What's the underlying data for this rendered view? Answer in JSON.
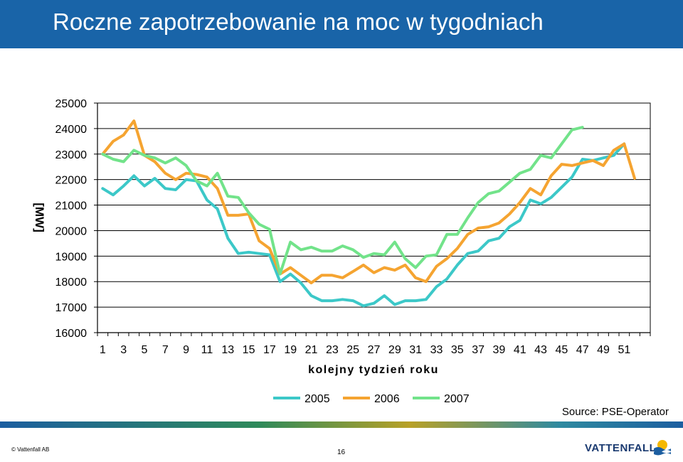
{
  "header": {
    "title": "Roczne zapotrzebowanie na moc w tygodniach"
  },
  "colors": {
    "header_bg": "#1964a8",
    "series_2005": "#3cc8c8",
    "series_2006": "#f5a431",
    "series_2007": "#72e38a",
    "logo": "#1a3a70"
  },
  "chart_data": {
    "type": "line",
    "title": "",
    "xlabel": "kolejny tydzień roku",
    "ylabel": "[MW]",
    "ylim": [
      16000,
      25000
    ],
    "yticks": [
      16000,
      17000,
      18000,
      19000,
      20000,
      21000,
      22000,
      23000,
      24000,
      25000
    ],
    "xlim": [
      1,
      53
    ],
    "xticks": [
      1,
      3,
      5,
      7,
      9,
      11,
      13,
      15,
      17,
      19,
      21,
      23,
      25,
      27,
      29,
      31,
      33,
      35,
      37,
      39,
      41,
      43,
      45,
      47,
      49,
      51
    ],
    "grid": "horizontal",
    "legend_position": "bottom",
    "series": [
      {
        "name": "2005",
        "color": "#3cc8c8",
        "x": [
          1,
          2,
          3,
          4,
          5,
          6,
          7,
          8,
          9,
          10,
          11,
          12,
          13,
          14,
          15,
          16,
          17,
          18,
          19,
          20,
          21,
          22,
          23,
          24,
          25,
          26,
          27,
          28,
          29,
          30,
          31,
          32,
          33,
          34,
          35,
          36,
          37,
          38,
          39,
          40,
          41,
          42,
          43,
          44,
          45,
          46,
          47,
          48,
          49,
          50,
          51
        ],
        "values": [
          21650,
          21400,
          21750,
          22150,
          21750,
          22050,
          21650,
          21600,
          22000,
          21950,
          21200,
          20850,
          19700,
          19100,
          19150,
          19100,
          19050,
          18000,
          18300,
          17950,
          17450,
          17250,
          17250,
          17300,
          17250,
          17050,
          17150,
          17450,
          17100,
          17250,
          17250,
          17300,
          17800,
          18100,
          18650,
          19100,
          19200,
          19600,
          19700,
          20150,
          20400,
          21200,
          21050,
          21300,
          21700,
          22100,
          22800,
          22750,
          22850,
          22950,
          23400
        ]
      },
      {
        "name": "2006",
        "color": "#f5a431",
        "x": [
          1,
          2,
          3,
          4,
          5,
          6,
          7,
          8,
          9,
          10,
          11,
          12,
          13,
          14,
          15,
          16,
          17,
          18,
          19,
          20,
          21,
          22,
          23,
          24,
          25,
          26,
          27,
          28,
          29,
          30,
          31,
          32,
          33,
          34,
          35,
          36,
          37,
          38,
          39,
          40,
          41,
          42,
          43,
          44,
          45,
          46,
          47,
          48,
          49,
          50,
          51,
          52
        ],
        "values": [
          23000,
          23500,
          23750,
          24300,
          22950,
          22700,
          22250,
          22000,
          22250,
          22200,
          22100,
          21650,
          20600,
          20600,
          20650,
          19600,
          19300,
          18300,
          18550,
          18250,
          17950,
          18250,
          18250,
          18150,
          18400,
          18650,
          18350,
          18550,
          18450,
          18650,
          18150,
          18000,
          18600,
          18900,
          19300,
          19850,
          20100,
          20150,
          20300,
          20650,
          21100,
          21650,
          21400,
          22150,
          22600,
          22550,
          22650,
          22750,
          22550,
          23150,
          23400,
          22050
        ]
      },
      {
        "name": "2007",
        "color": "#72e38a",
        "x": [
          1,
          2,
          3,
          4,
          5,
          6,
          7,
          8,
          9,
          10,
          11,
          12,
          13,
          14,
          15,
          16,
          17,
          18,
          19,
          20,
          21,
          22,
          23,
          24,
          25,
          26,
          27,
          28,
          29,
          30,
          31,
          32,
          33,
          34,
          35,
          36,
          37,
          38,
          39,
          40,
          41,
          42,
          43,
          44,
          45,
          46,
          47
        ],
        "values": [
          23000,
          22800,
          22700,
          23150,
          22950,
          22850,
          22650,
          22850,
          22550,
          21950,
          21750,
          22250,
          21350,
          21300,
          20700,
          20250,
          20050,
          18300,
          19550,
          19250,
          19350,
          19200,
          19200,
          19400,
          19250,
          18950,
          19100,
          19050,
          19550,
          18900,
          18550,
          19000,
          19050,
          19850,
          19850,
          20500,
          21100,
          21450,
          21550,
          21900,
          22250,
          22400,
          22950,
          22850,
          23400,
          23950,
          24050
        ]
      }
    ]
  },
  "footer": {
    "source": "Source: PSE-Operator",
    "copyright": "© Vattenfall AB",
    "page": "16",
    "logo": "VATTENFALL"
  }
}
